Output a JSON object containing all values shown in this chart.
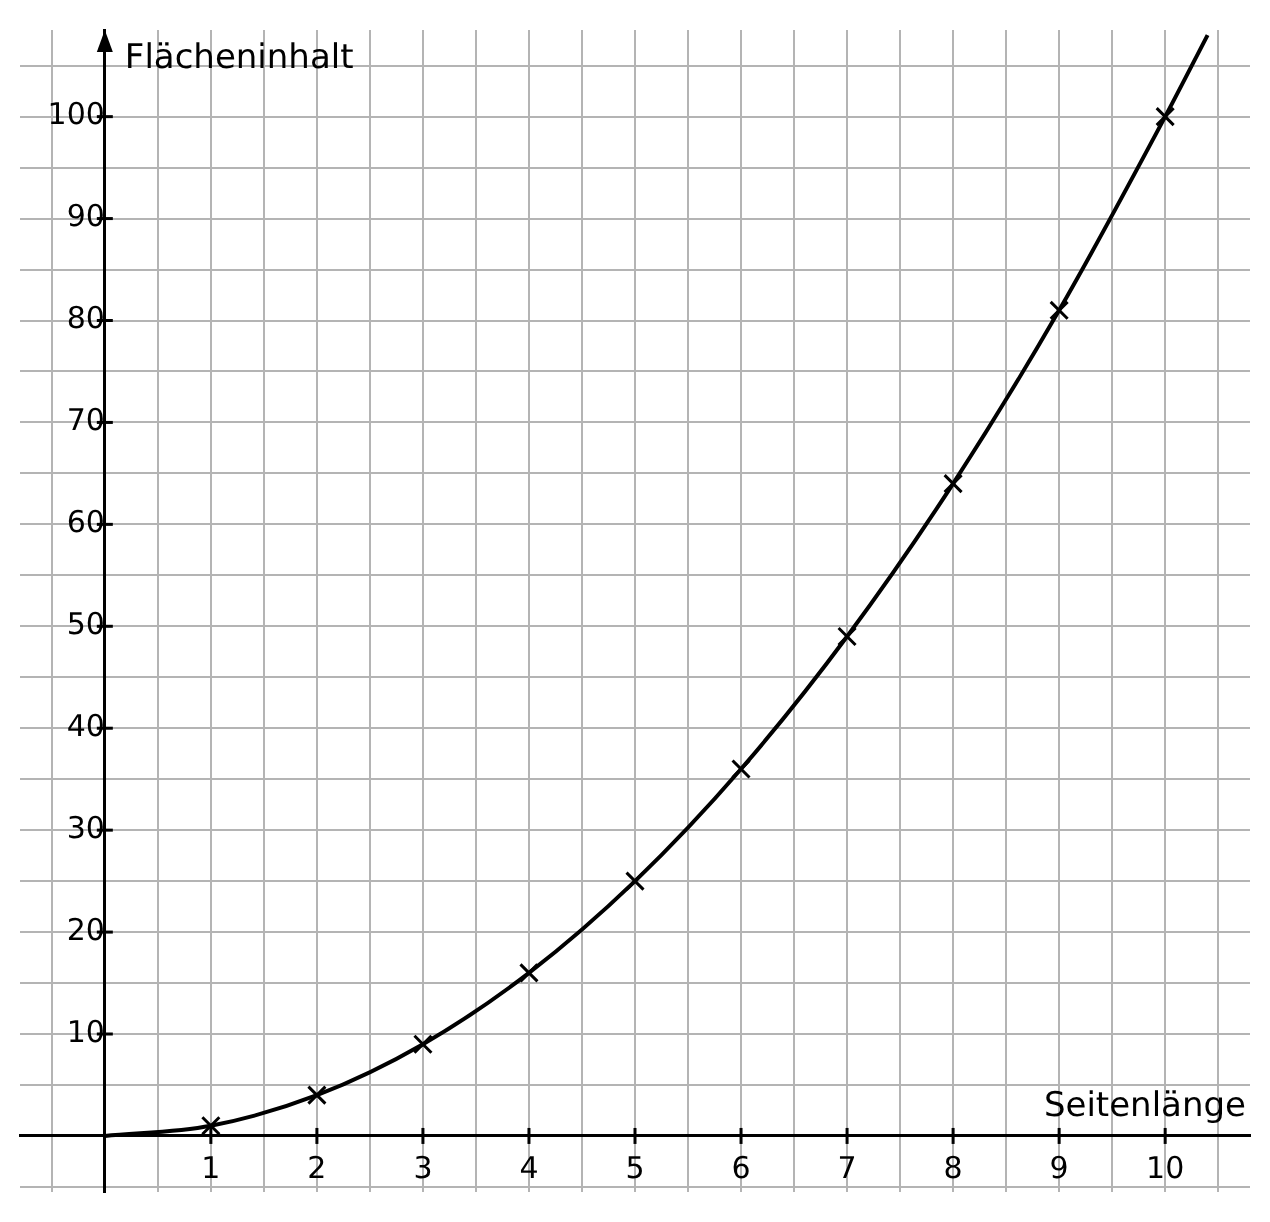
{
  "chart_data": {
    "type": "line",
    "xlabel": "Seitenlänge",
    "ylabel": "Flächeninhalt",
    "xlim": [
      -0.8,
      10.8
    ],
    "ylim": [
      -5.5,
      108.5
    ],
    "xticks": [
      {
        "value": -0.5,
        "label": null
      },
      {
        "value": 0,
        "label": null
      },
      {
        "value": 0.5,
        "label": null
      },
      1,
      {
        "value": 1.5,
        "label": null
      },
      2,
      {
        "value": 2.5,
        "label": null
      },
      3,
      {
        "value": 3.5,
        "label": null
      },
      4,
      {
        "value": 4.5,
        "label": null
      },
      5,
      {
        "value": 5.5,
        "label": null
      },
      6,
      {
        "value": 6.5,
        "label": null
      },
      7,
      {
        "value": 7.5,
        "label": null
      },
      8,
      {
        "value": 8.5,
        "label": null
      },
      9,
      {
        "value": 9.5,
        "label": null
      },
      10,
      {
        "value": 10.5,
        "label": null
      }
    ],
    "yticks": [
      {
        "value": -5,
        "label": null
      },
      {
        "value": 0,
        "label": null
      },
      {
        "value": 5,
        "label": null
      },
      10,
      {
        "value": 15,
        "label": null
      },
      20,
      {
        "value": 25,
        "label": null
      },
      30,
      {
        "value": 35,
        "label": null
      },
      40,
      {
        "value": 45,
        "label": null
      },
      50,
      {
        "value": 55,
        "label": null
      },
      60,
      {
        "value": 65,
        "label": null
      },
      70,
      {
        "value": 75,
        "label": null
      },
      80,
      {
        "value": 85,
        "label": null
      },
      90,
      {
        "value": 95,
        "label": null
      },
      100,
      {
        "value": 105,
        "label": null
      }
    ],
    "grid": true,
    "series": [
      {
        "color": "#000000",
        "marker": "none",
        "x": [
          0,
          1,
          2,
          3,
          4,
          5,
          6,
          7,
          8,
          9,
          10,
          10.4
        ],
        "values": [
          0,
          1,
          4,
          9,
          16,
          25,
          36,
          49,
          64,
          81,
          100,
          108
        ]
      },
      {
        "type": "scatter",
        "color": "#000000",
        "marker": "cross",
        "x": [
          1,
          2,
          3,
          4,
          5,
          6,
          7,
          8,
          9,
          10
        ],
        "values": [
          1,
          4,
          9,
          16,
          25,
          36,
          49,
          64,
          81,
          100
        ]
      }
    ]
  }
}
